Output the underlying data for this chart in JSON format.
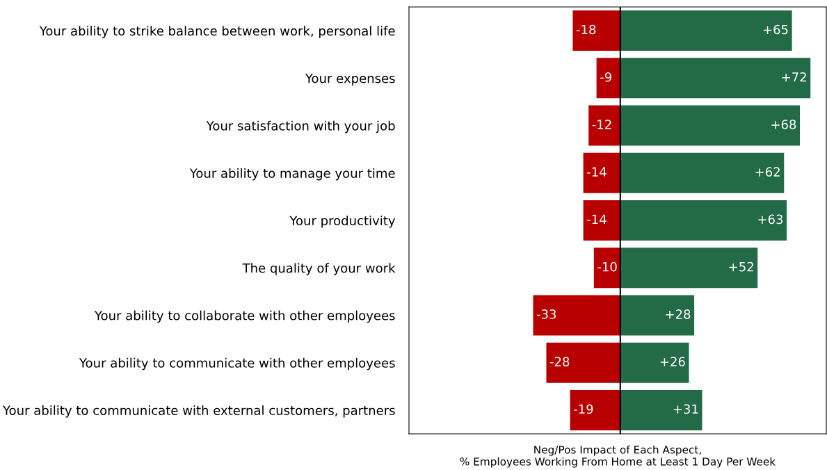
{
  "chart_data": {
    "type": "bar",
    "orientation": "horizontal",
    "stacked": true,
    "categories": [
      "Your ability to strike balance between work, personal life",
      "Your expenses",
      "Your satisfaction with your job",
      "Your ability to manage your time",
      "Your productivity",
      "The quality of your work",
      "Your ability to collaborate with other employees",
      "Your ability to communicate with other employees",
      "Your ability to communicate with external customers, partners"
    ],
    "series": [
      {
        "color": "#b90000",
        "values": [
          -18,
          -9,
          -12,
          -14,
          -14,
          -10,
          -33,
          -28,
          -19
        ],
        "value_labels": [
          "-18",
          "-9",
          "-12",
          "-14",
          "-14",
          "-10",
          "-33",
          "-28",
          "-19"
        ]
      },
      {
        "color": "#236a46",
        "values": [
          65,
          72,
          68,
          62,
          63,
          52,
          28,
          26,
          31
        ],
        "value_labels": [
          "+65",
          "+72",
          "+68",
          "+62",
          "+63",
          "+52",
          "+28",
          "+26",
          "+31"
        ]
      }
    ],
    "xlim": [
      -80,
      78
    ],
    "xlabel": "Neg/Pos Impact of Each Aspect,\n% Employees Working From Home at Least 1 Day Per Week",
    "ref_lines": [
      {
        "axis": "x",
        "value": 0,
        "color": "#000000"
      }
    ],
    "tick_labels": "y",
    "grid": false,
    "legend": false
  }
}
